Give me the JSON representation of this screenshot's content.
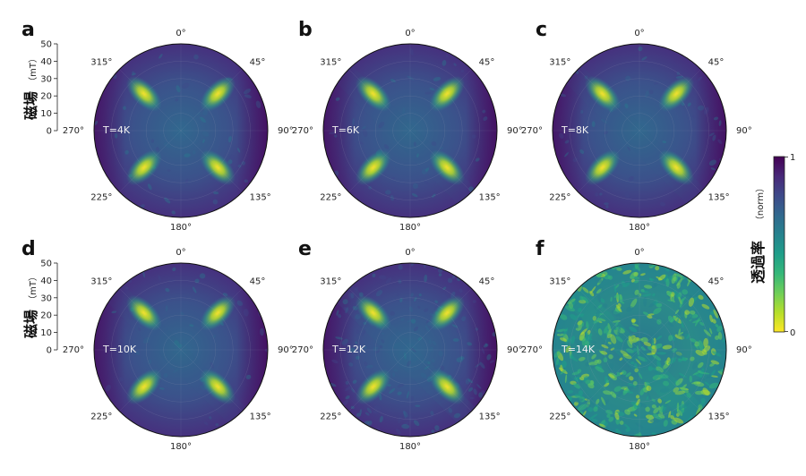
{
  "figure": {
    "y_axis_label": "磁場",
    "y_axis_unit": "（mT）",
    "radial_ticks": [
      "0",
      "10",
      "20",
      "30",
      "40",
      "50"
    ],
    "radial_range": [
      0,
      50
    ],
    "angle_labels": [
      "0°",
      "45°",
      "90°",
      "135°",
      "180°",
      "225°",
      "270°",
      "315°"
    ]
  },
  "colorbar": {
    "label": "透過率",
    "unit": "（norm）",
    "max_label": "1",
    "min_label": "0",
    "colormap": "viridis (reversed: yellow = 0, dark purple = 1)"
  },
  "chart_data": [
    {
      "type": "heatmap",
      "panel": "a",
      "temperature": "T=4K",
      "polar": true,
      "lobe_angles_deg": [
        45,
        135,
        225,
        315
      ],
      "lobe_radius_mT": 30,
      "noise": "low"
    },
    {
      "type": "heatmap",
      "panel": "b",
      "temperature": "T=6K",
      "polar": true,
      "lobe_angles_deg": [
        45,
        135,
        225,
        315
      ],
      "lobe_radius_mT": 30,
      "noise": "low"
    },
    {
      "type": "heatmap",
      "panel": "c",
      "temperature": "T=8K",
      "polar": true,
      "lobe_angles_deg": [
        45,
        135,
        225,
        315
      ],
      "lobe_radius_mT": 30,
      "noise": "low"
    },
    {
      "type": "heatmap",
      "panel": "d",
      "temperature": "T=10K",
      "polar": true,
      "lobe_angles_deg": [
        45,
        135,
        225,
        315
      ],
      "lobe_radius_mT": 30,
      "noise": "low"
    },
    {
      "type": "heatmap",
      "panel": "e",
      "temperature": "T=12K",
      "polar": true,
      "lobe_angles_deg": [
        45,
        135,
        225,
        315
      ],
      "lobe_radius_mT": 30,
      "noise": "moderate"
    },
    {
      "type": "heatmap",
      "panel": "f",
      "temperature": "T=14K",
      "polar": true,
      "lobe_angles_deg": [],
      "lobe_radius_mT": null,
      "noise": "high"
    }
  ]
}
